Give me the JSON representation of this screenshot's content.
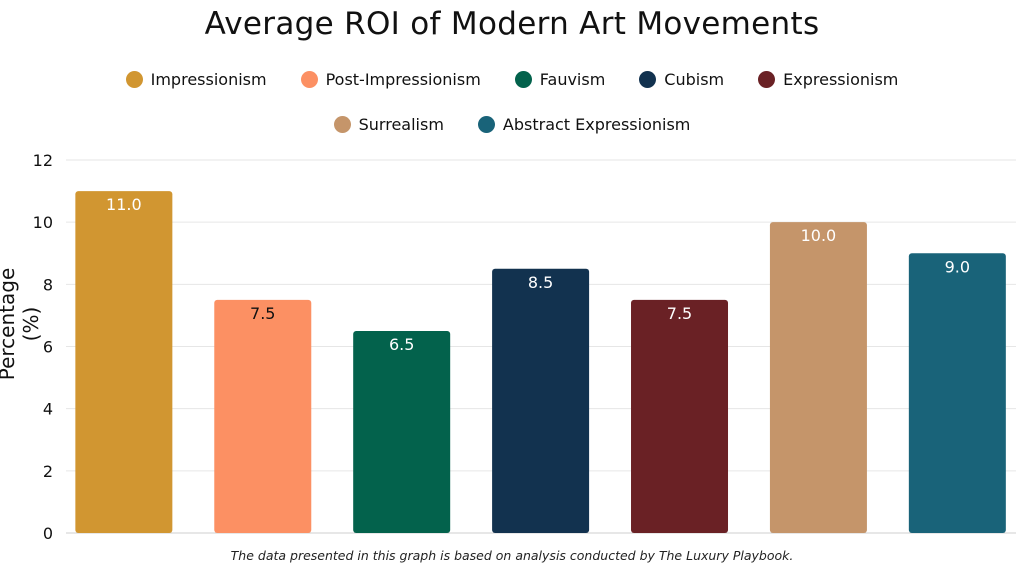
{
  "chart_data": {
    "type": "bar",
    "title": "Average ROI of Modern Art Movements",
    "ylabel": "Percentage (%)",
    "xlabel": "",
    "ylim": [
      0,
      12
    ],
    "yticks": [
      0,
      2,
      4,
      6,
      8,
      10,
      12
    ],
    "grid": true,
    "legend_position": "top",
    "categories": [
      "Impressionism",
      "Post-Impressionism",
      "Fauvism",
      "Cubism",
      "Expressionism",
      "Surrealism",
      "Abstract Expressionism"
    ],
    "values": [
      11.0,
      7.5,
      6.5,
      8.5,
      7.5,
      10.0,
      9.0
    ],
    "value_labels": [
      "11.0",
      "7.5",
      "6.5",
      "8.5",
      "7.5",
      "10.0",
      "9.0"
    ],
    "colors": [
      "#D19631",
      "#FC9063",
      "#03624C",
      "#12324F",
      "#6A2125",
      "#C5956A",
      "#196379"
    ],
    "label_colors": [
      "#ffffff",
      "#111111",
      "#ffffff",
      "#ffffff",
      "#ffffff",
      "#ffffff",
      "#ffffff"
    ]
  },
  "footnote": "The data presented in this graph is based on analysis conducted by The Luxury Playbook."
}
